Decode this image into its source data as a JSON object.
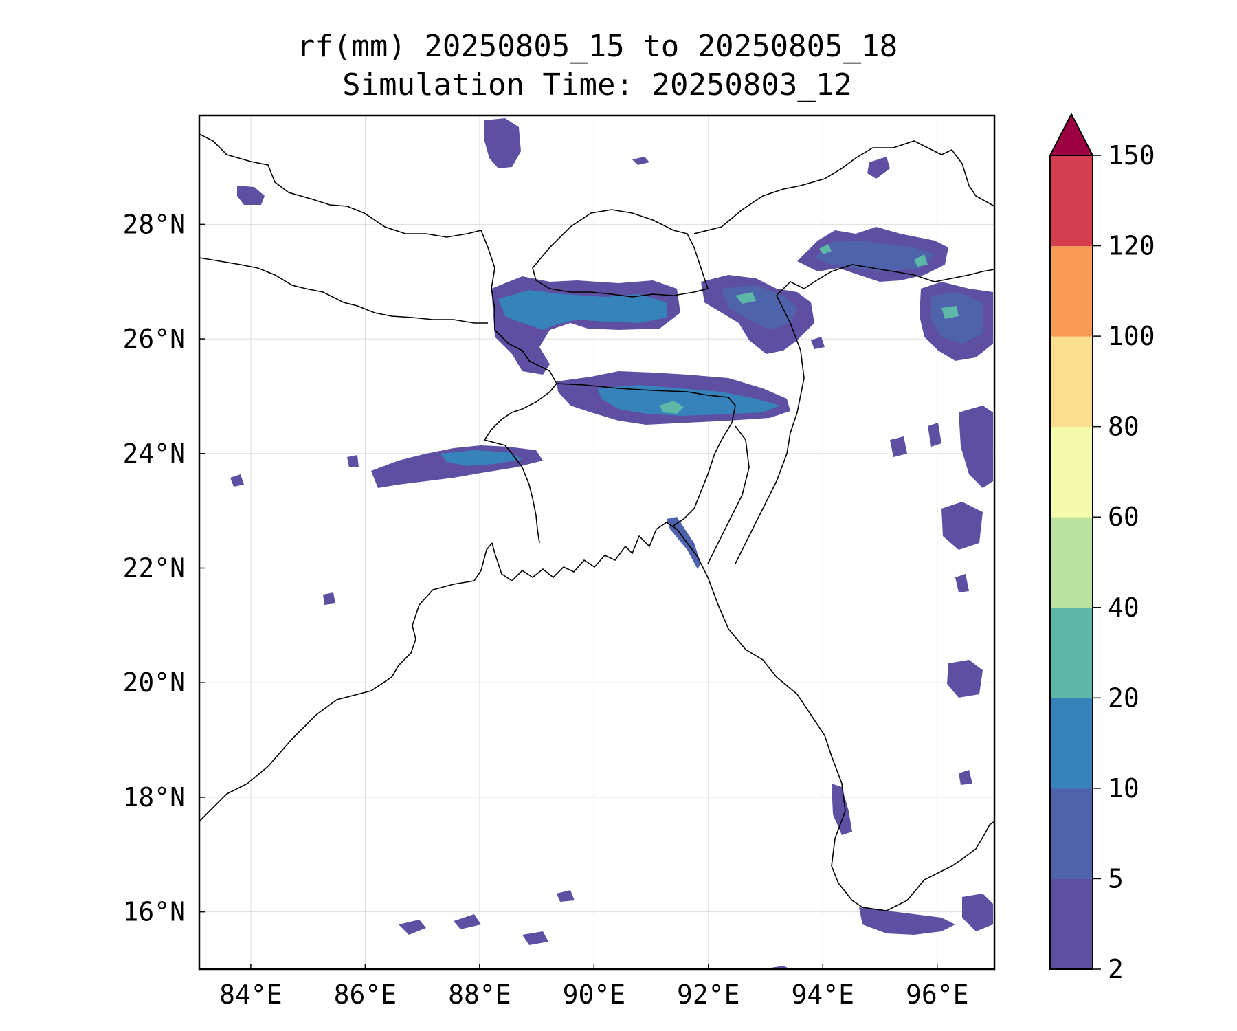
{
  "title": {
    "line1": "rf(mm) 20250805_15 to 20250805_18",
    "line2": "Simulation Time: 20250803_12"
  },
  "map": {
    "lon_range": [
      83.1,
      97.0
    ],
    "lat_range": [
      15.0,
      29.9
    ],
    "x_ticks": [
      {
        "value": 84,
        "label": "84°E"
      },
      {
        "value": 86,
        "label": "86°E"
      },
      {
        "value": 88,
        "label": "88°E"
      },
      {
        "value": 90,
        "label": "90°E"
      },
      {
        "value": 92,
        "label": "92°E"
      },
      {
        "value": 94,
        "label": "94°E"
      },
      {
        "value": 96,
        "label": "96°E"
      }
    ],
    "y_ticks": [
      {
        "value": 16,
        "label": "16°N"
      },
      {
        "value": 18,
        "label": "18°N"
      },
      {
        "value": 20,
        "label": "20°N"
      },
      {
        "value": 22,
        "label": "22°N"
      },
      {
        "value": 24,
        "label": "24°N"
      },
      {
        "value": 26,
        "label": "26°N"
      },
      {
        "value": 28,
        "label": "28°N"
      }
    ],
    "grid": true
  },
  "colorbar": {
    "levels": [
      "2",
      "5",
      "10",
      "20",
      "40",
      "60",
      "80",
      "100",
      "120",
      "150"
    ],
    "colors": [
      "#5e4fa2",
      "#4f63ac",
      "#3682ba",
      "#5db8a8",
      "#bae3a0",
      "#f4fbaa",
      "#fcdf8e",
      "#f99c58",
      "#d53e4f"
    ],
    "extend_color": "#9e0142",
    "extend": "max"
  },
  "colors": {
    "level_2_5": "#5e4fa2",
    "level_5_10": "#4f63ac",
    "level_10_20": "#3682ba",
    "level_20_40": "#5db8a8",
    "level_40_60": "#bae3a0",
    "coastline": "#000000"
  }
}
